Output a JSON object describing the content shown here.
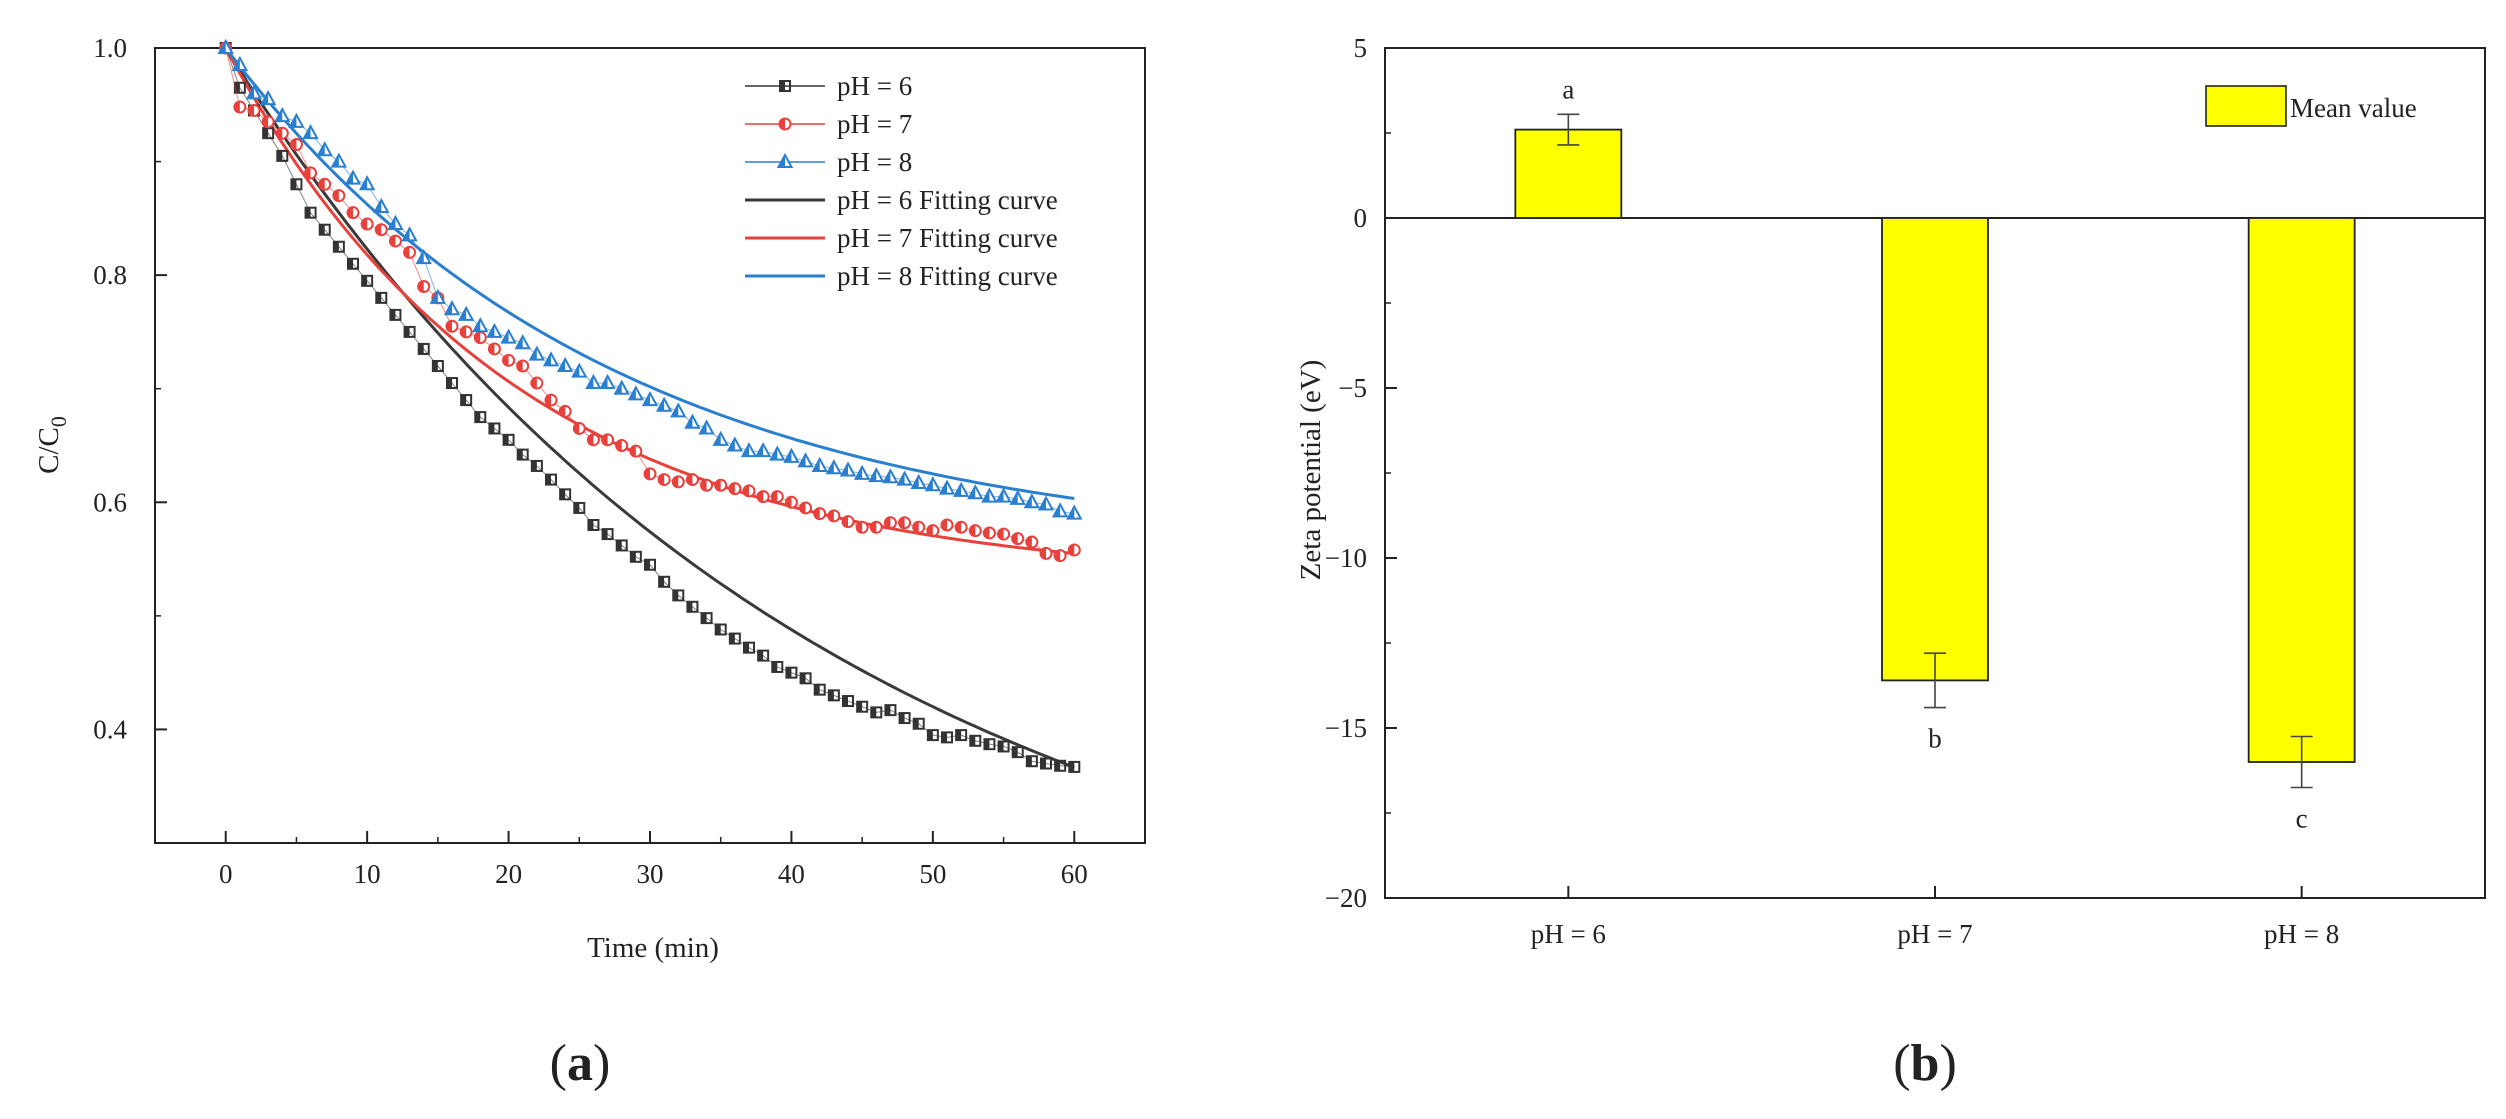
{
  "panels": {
    "a_prefix": "(",
    "a_letter": "a",
    "a_suffix": ")",
    "b_prefix": "(",
    "b_letter": "b",
    "b_suffix": ")"
  },
  "chart_data": [
    {
      "id": "a",
      "type": "scatter",
      "title": "",
      "xlabel": "Time (min)",
      "ylabel_main": "C/C",
      "ylabel_sub": "0",
      "xlim": [
        -5,
        65
      ],
      "ylim": [
        0.3,
        1.0
      ],
      "xticks": [
        0,
        10,
        20,
        30,
        40,
        50,
        60
      ],
      "yticks": [
        0.4,
        0.6,
        0.8,
        1.0
      ],
      "ytick_labels": [
        "0.4",
        "0.6",
        "0.8",
        "1.0"
      ],
      "series": [
        {
          "name": "pH = 6",
          "kind": "points",
          "marker": "square",
          "color": "#333333",
          "x": [
            0,
            1,
            2,
            3,
            4,
            5,
            6,
            7,
            8,
            9,
            10,
            11,
            12,
            13,
            14,
            15,
            16,
            17,
            18,
            19,
            20,
            21,
            22,
            23,
            24,
            25,
            26,
            27,
            28,
            29,
            30,
            31,
            32,
            33,
            34,
            35,
            36,
            37,
            38,
            39,
            40,
            41,
            42,
            43,
            44,
            45,
            46,
            47,
            48,
            49,
            50,
            51,
            52,
            53,
            54,
            55,
            56,
            57,
            58,
            59,
            60
          ],
          "y": [
            1.0,
            0.965,
            0.945,
            0.925,
            0.905,
            0.88,
            0.855,
            0.84,
            0.825,
            0.81,
            0.795,
            0.78,
            0.765,
            0.75,
            0.735,
            0.72,
            0.705,
            0.69,
            0.675,
            0.665,
            0.655,
            0.642,
            0.632,
            0.62,
            0.607,
            0.595,
            0.58,
            0.572,
            0.562,
            0.552,
            0.545,
            0.53,
            0.518,
            0.508,
            0.498,
            0.488,
            0.48,
            0.472,
            0.465,
            0.455,
            0.45,
            0.445,
            0.435,
            0.43,
            0.425,
            0.42,
            0.415,
            0.417,
            0.41,
            0.405,
            0.395,
            0.393,
            0.395,
            0.39,
            0.387,
            0.385,
            0.38,
            0.372,
            0.37,
            0.368,
            0.367
          ]
        },
        {
          "name": "pH = 7",
          "kind": "points",
          "marker": "circle",
          "color": "#e8413c",
          "x": [
            0,
            1,
            2,
            3,
            4,
            5,
            6,
            7,
            8,
            9,
            10,
            11,
            12,
            13,
            14,
            15,
            16,
            17,
            18,
            19,
            20,
            21,
            22,
            23,
            24,
            25,
            26,
            27,
            28,
            29,
            30,
            31,
            32,
            33,
            34,
            35,
            36,
            37,
            38,
            39,
            40,
            41,
            42,
            43,
            44,
            45,
            46,
            47,
            48,
            49,
            50,
            51,
            52,
            53,
            54,
            55,
            56,
            57,
            58,
            59,
            60
          ],
          "y": [
            1.0,
            0.948,
            0.945,
            0.935,
            0.925,
            0.915,
            0.89,
            0.88,
            0.87,
            0.855,
            0.845,
            0.84,
            0.83,
            0.82,
            0.79,
            0.78,
            0.755,
            0.75,
            0.745,
            0.735,
            0.725,
            0.72,
            0.705,
            0.69,
            0.68,
            0.665,
            0.655,
            0.655,
            0.65,
            0.645,
            0.625,
            0.62,
            0.618,
            0.62,
            0.615,
            0.615,
            0.612,
            0.61,
            0.605,
            0.605,
            0.6,
            0.595,
            0.59,
            0.588,
            0.583,
            0.578,
            0.578,
            0.582,
            0.582,
            0.578,
            0.575,
            0.58,
            0.578,
            0.575,
            0.573,
            0.572,
            0.568,
            0.565,
            0.555,
            0.553,
            0.558
          ]
        },
        {
          "name": "pH = 8",
          "kind": "points",
          "marker": "triangle",
          "color": "#2b7fd0",
          "x": [
            0,
            1,
            2,
            3,
            4,
            5,
            6,
            7,
            8,
            9,
            10,
            11,
            12,
            13,
            14,
            15,
            16,
            17,
            18,
            19,
            20,
            21,
            22,
            23,
            24,
            25,
            26,
            27,
            28,
            29,
            30,
            31,
            32,
            33,
            34,
            35,
            36,
            37,
            38,
            39,
            40,
            41,
            42,
            43,
            44,
            45,
            46,
            47,
            48,
            49,
            50,
            51,
            52,
            53,
            54,
            55,
            56,
            57,
            58,
            59,
            60
          ],
          "y": [
            1.0,
            0.985,
            0.96,
            0.955,
            0.94,
            0.935,
            0.925,
            0.91,
            0.9,
            0.885,
            0.88,
            0.86,
            0.845,
            0.835,
            0.815,
            0.78,
            0.77,
            0.765,
            0.755,
            0.75,
            0.745,
            0.74,
            0.73,
            0.725,
            0.72,
            0.715,
            0.705,
            0.705,
            0.7,
            0.695,
            0.69,
            0.685,
            0.68,
            0.67,
            0.665,
            0.655,
            0.65,
            0.645,
            0.645,
            0.642,
            0.64,
            0.636,
            0.632,
            0.63,
            0.628,
            0.625,
            0.623,
            0.622,
            0.62,
            0.617,
            0.615,
            0.612,
            0.61,
            0.608,
            0.605,
            0.605,
            0.603,
            0.6,
            0.598,
            0.592,
            0.59
          ]
        },
        {
          "name": "pH = 6 Fitting curve",
          "kind": "line",
          "color": "#3a3a3a",
          "fit": {
            "cinf": 0.17,
            "k": 0.024
          }
        },
        {
          "name": "pH = 7 Fitting curve",
          "kind": "line",
          "color": "#e8413c",
          "fit": {
            "cinf": 0.53,
            "k": 0.049
          }
        },
        {
          "name": "pH = 8 Fitting curve",
          "kind": "line",
          "color": "#2b7fd0",
          "fit": {
            "cinf": 0.555,
            "k": 0.037
          }
        }
      ]
    },
    {
      "id": "b",
      "type": "bar",
      "title": "",
      "xlabel": "",
      "ylabel": "Zeta potential (eV)",
      "categories": [
        "pH = 6",
        "pH = 7",
        "pH = 8"
      ],
      "values": [
        2.6,
        -13.6,
        -16.0
      ],
      "errors": [
        0.45,
        0.8,
        0.75
      ],
      "letters": [
        "a",
        "b",
        "c"
      ],
      "ylim": [
        -20,
        5
      ],
      "yticks": [
        5,
        0,
        -5,
        -10,
        -15,
        -20
      ],
      "ytick_labels": [
        "5",
        "0",
        "−5",
        "−10",
        "−15",
        "−20"
      ],
      "legend": "Mean value",
      "legend_position": "top-right",
      "bar_color": "#ffff00"
    }
  ]
}
